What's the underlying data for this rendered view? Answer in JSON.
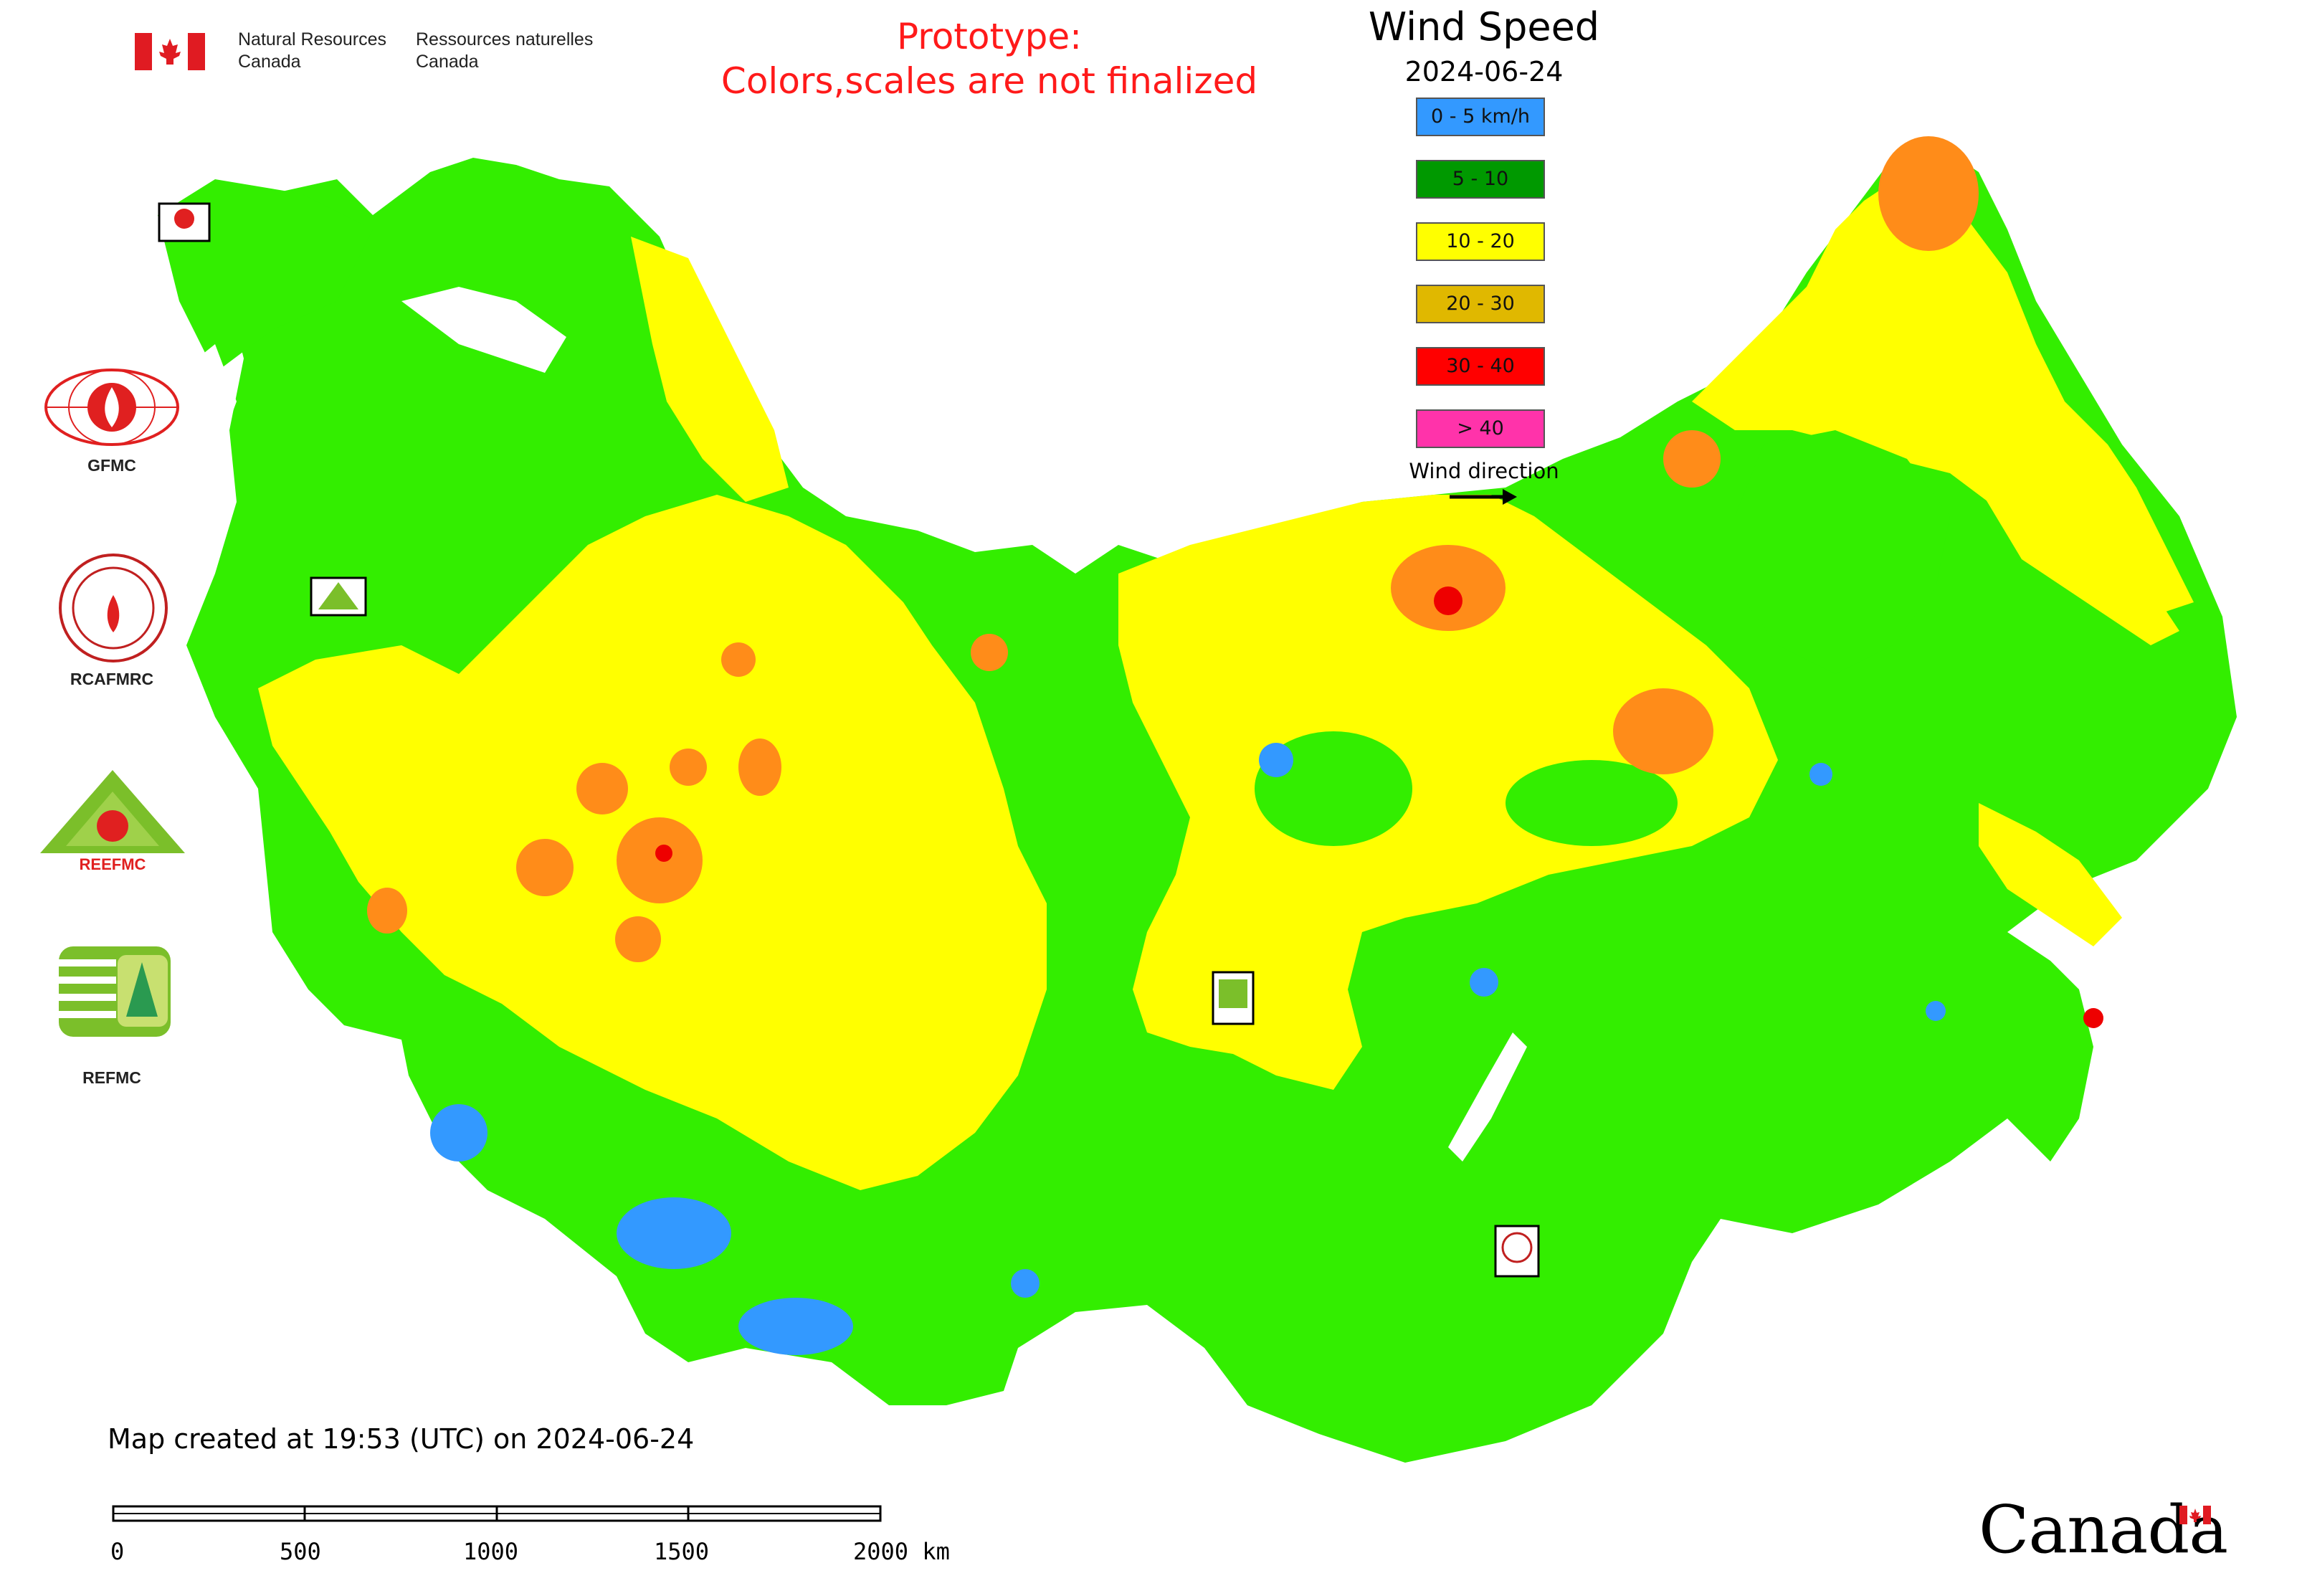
{
  "header": {
    "dept_en": [
      "Natural Resources",
      "Canada"
    ],
    "dept_fr": [
      "Ressources naturelles",
      "Canada"
    ],
    "prototype_line1": "Prototype:",
    "prototype_line2": "Colors,scales are not finalized",
    "title": "Wind Speed",
    "date": "2024-06-24",
    "prototype_color": "#ff1a1a"
  },
  "legend": {
    "items": [
      {
        "label": "0 - 5 km/h",
        "color": "#3399ff"
      },
      {
        "label": "5 - 10",
        "color": "#009900"
      },
      {
        "label": "10 - 20",
        "color": "#ffff00"
      },
      {
        "label": "20 - 30",
        "color": "#e0b800"
      },
      {
        "label": "30 - 40",
        "color": "#ff0000"
      },
      {
        "label": "> 40",
        "color": "#ff33aa"
      }
    ],
    "wind_direction_label": "Wind direction"
  },
  "logos": {
    "gfmc": "GFMC",
    "rcafmrc": "RCAFMRC",
    "reefmc": "REEFMC",
    "refmc": "REFMC",
    "reefmc_inner": "REEFMC"
  },
  "map_colors": {
    "green": "#33ee00",
    "yellow": "#ffff00",
    "orange": "#ff8c19",
    "red": "#ee0000",
    "blue": "#3399ff",
    "border": "#b06ab0"
  },
  "footer": {
    "created": "Map created at 19:53 (UTC) on 2024-06-24",
    "scale_labels": [
      "0",
      "500",
      "1000",
      "1500",
      "2000 km"
    ],
    "wordmark": "Canada"
  }
}
